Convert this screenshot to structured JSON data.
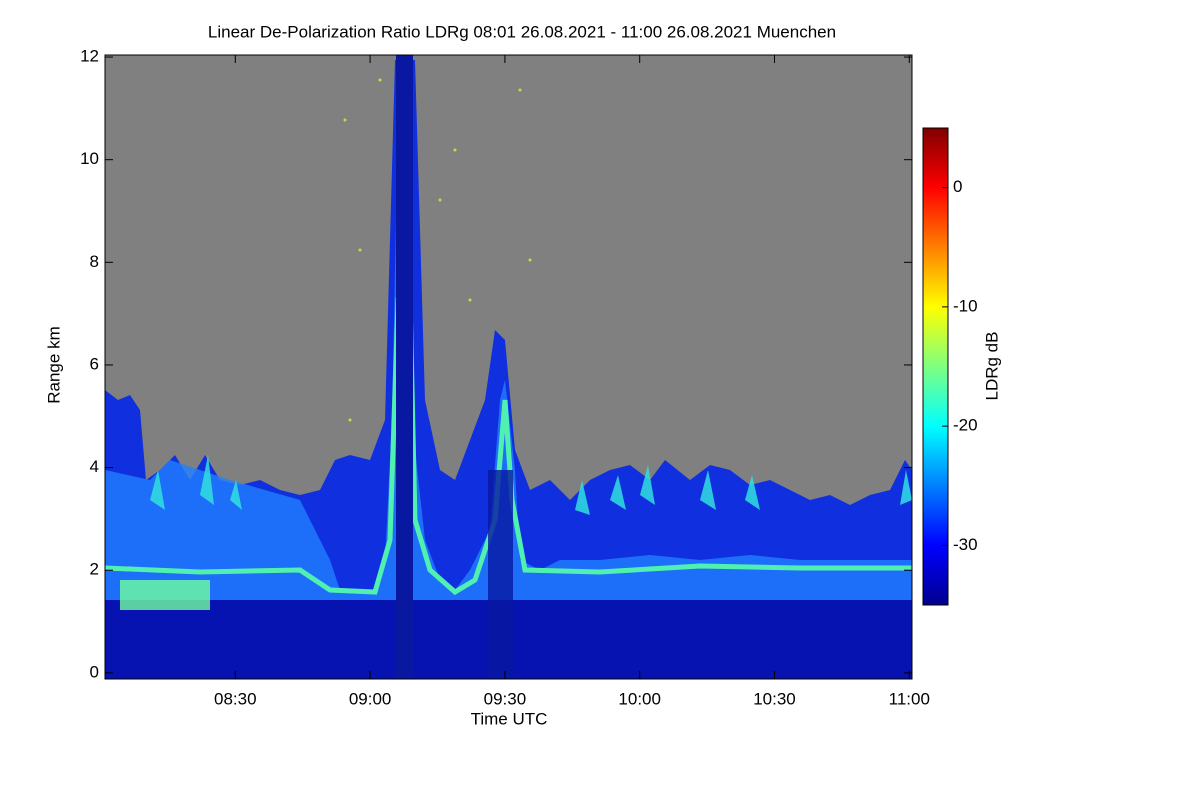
{
  "chart_data": {
    "type": "heatmap",
    "title": "Linear De-Polarization Ratio LDRg   08:01 26.08.2021 - 11:00 26.08.2021 Muenchen",
    "x_label": "Time UTC",
    "y_label": "Range km",
    "colorbar_label": "LDRg dB",
    "xlim": [
      8.0167,
      11.01
    ],
    "xticks": [
      {
        "value": 8.5,
        "label": "08:30"
      },
      {
        "value": 9.0,
        "label": "09:00"
      },
      {
        "value": 9.5,
        "label": "09:30"
      },
      {
        "value": 10.0,
        "label": "10:00"
      },
      {
        "value": 10.5,
        "label": "10:30"
      },
      {
        "value": 11.0,
        "label": "11:00"
      }
    ],
    "ylim": [
      -0.12,
      12.04
    ],
    "yticks": [
      0,
      2,
      4,
      6,
      8,
      10,
      12
    ],
    "zlim": [
      -35,
      5
    ],
    "zticks": [
      0,
      -10,
      -20,
      -30
    ],
    "colormap": "jet"
  }
}
